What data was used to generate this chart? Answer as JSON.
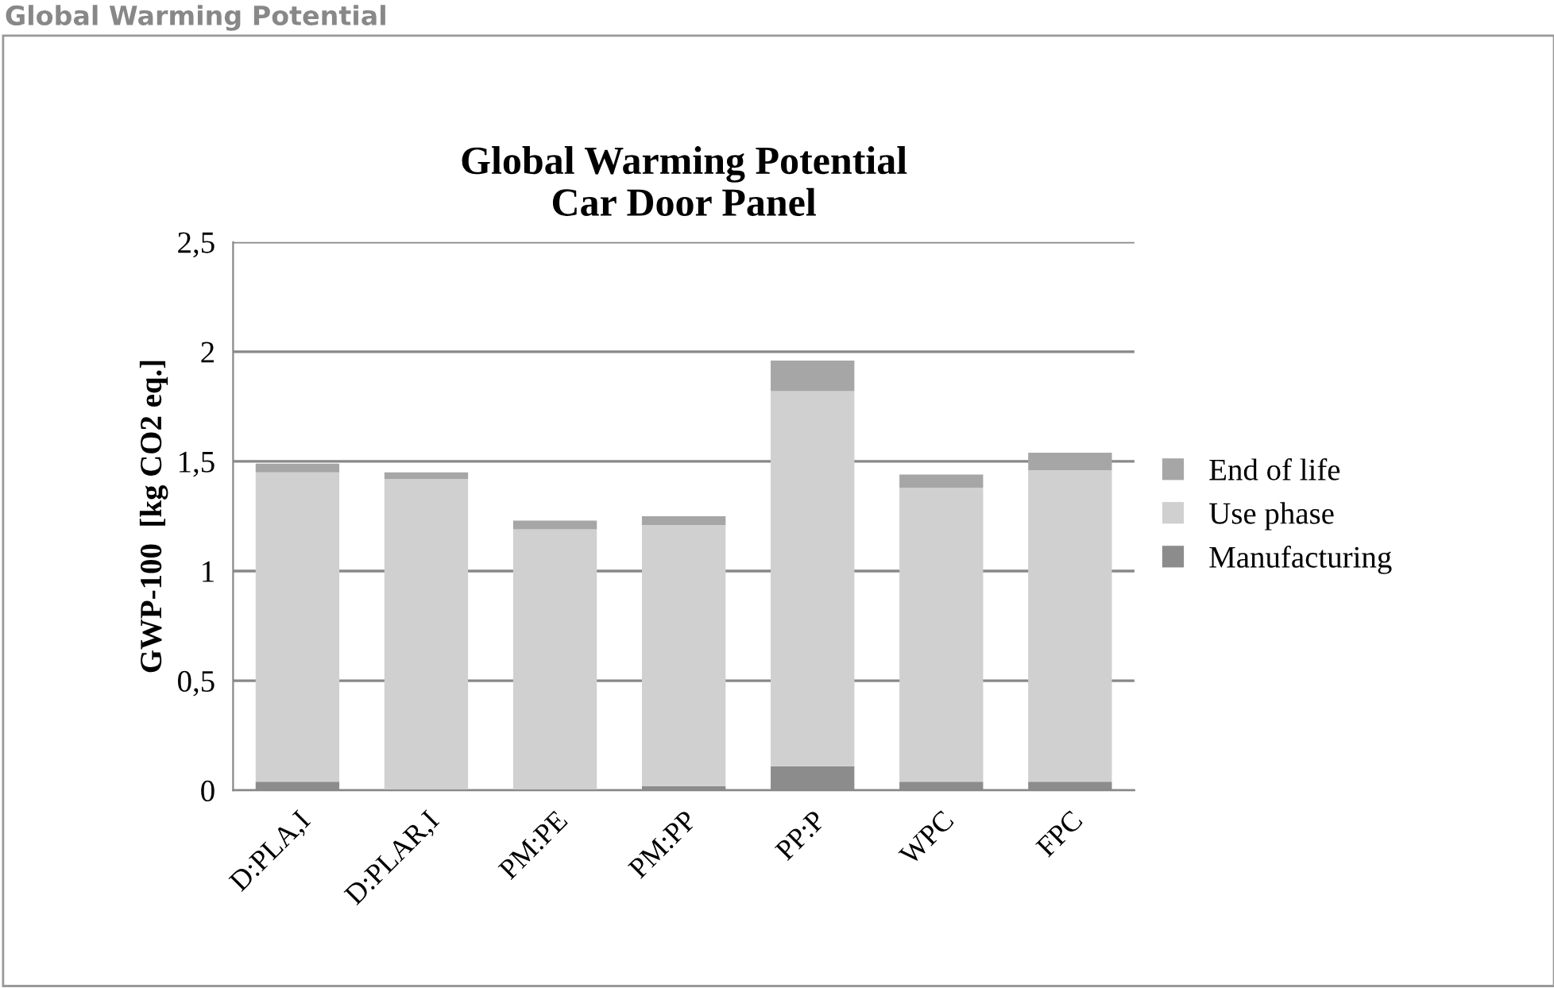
{
  "chart_data": {
    "type": "bar",
    "stacked": true,
    "title": "Global Warming Potential\nCar Door Panel",
    "ylabel": "GWP-100  [kg CO2 eq.]",
    "annotations": [
      "Global Warming Potential"
    ],
    "categories": [
      "D:PLA,I",
      "D:PLAR,I",
      "PM:PE",
      "PM:PP",
      "PP:P",
      "WPC",
      "FPC"
    ],
    "series": [
      {
        "name": "Manufacturing",
        "color": "#8c8c8c",
        "values": [
          0.04,
          null,
          null,
          0.02,
          0.11,
          0.04,
          0.04
        ]
      },
      {
        "name": "Use phase",
        "color": "#d0d0d0",
        "values": [
          1.41,
          1.42,
          1.19,
          1.19,
          1.71,
          1.34,
          1.42
        ]
      },
      {
        "name": "End of life",
        "color": "#a6a6a6",
        "values": [
          0.04,
          0.03,
          0.04,
          0.04,
          0.14,
          0.06,
          0.08
        ]
      }
    ],
    "ylim": [
      0,
      2.5
    ],
    "yticks": [
      0,
      {
        "value": 0.5,
        "label": "0,5"
      },
      1,
      {
        "value": 1.5,
        "label": "1,5"
      },
      2,
      {
        "value": 2.5,
        "label": "2,5"
      }
    ],
    "grid": "y",
    "legend": "right"
  }
}
